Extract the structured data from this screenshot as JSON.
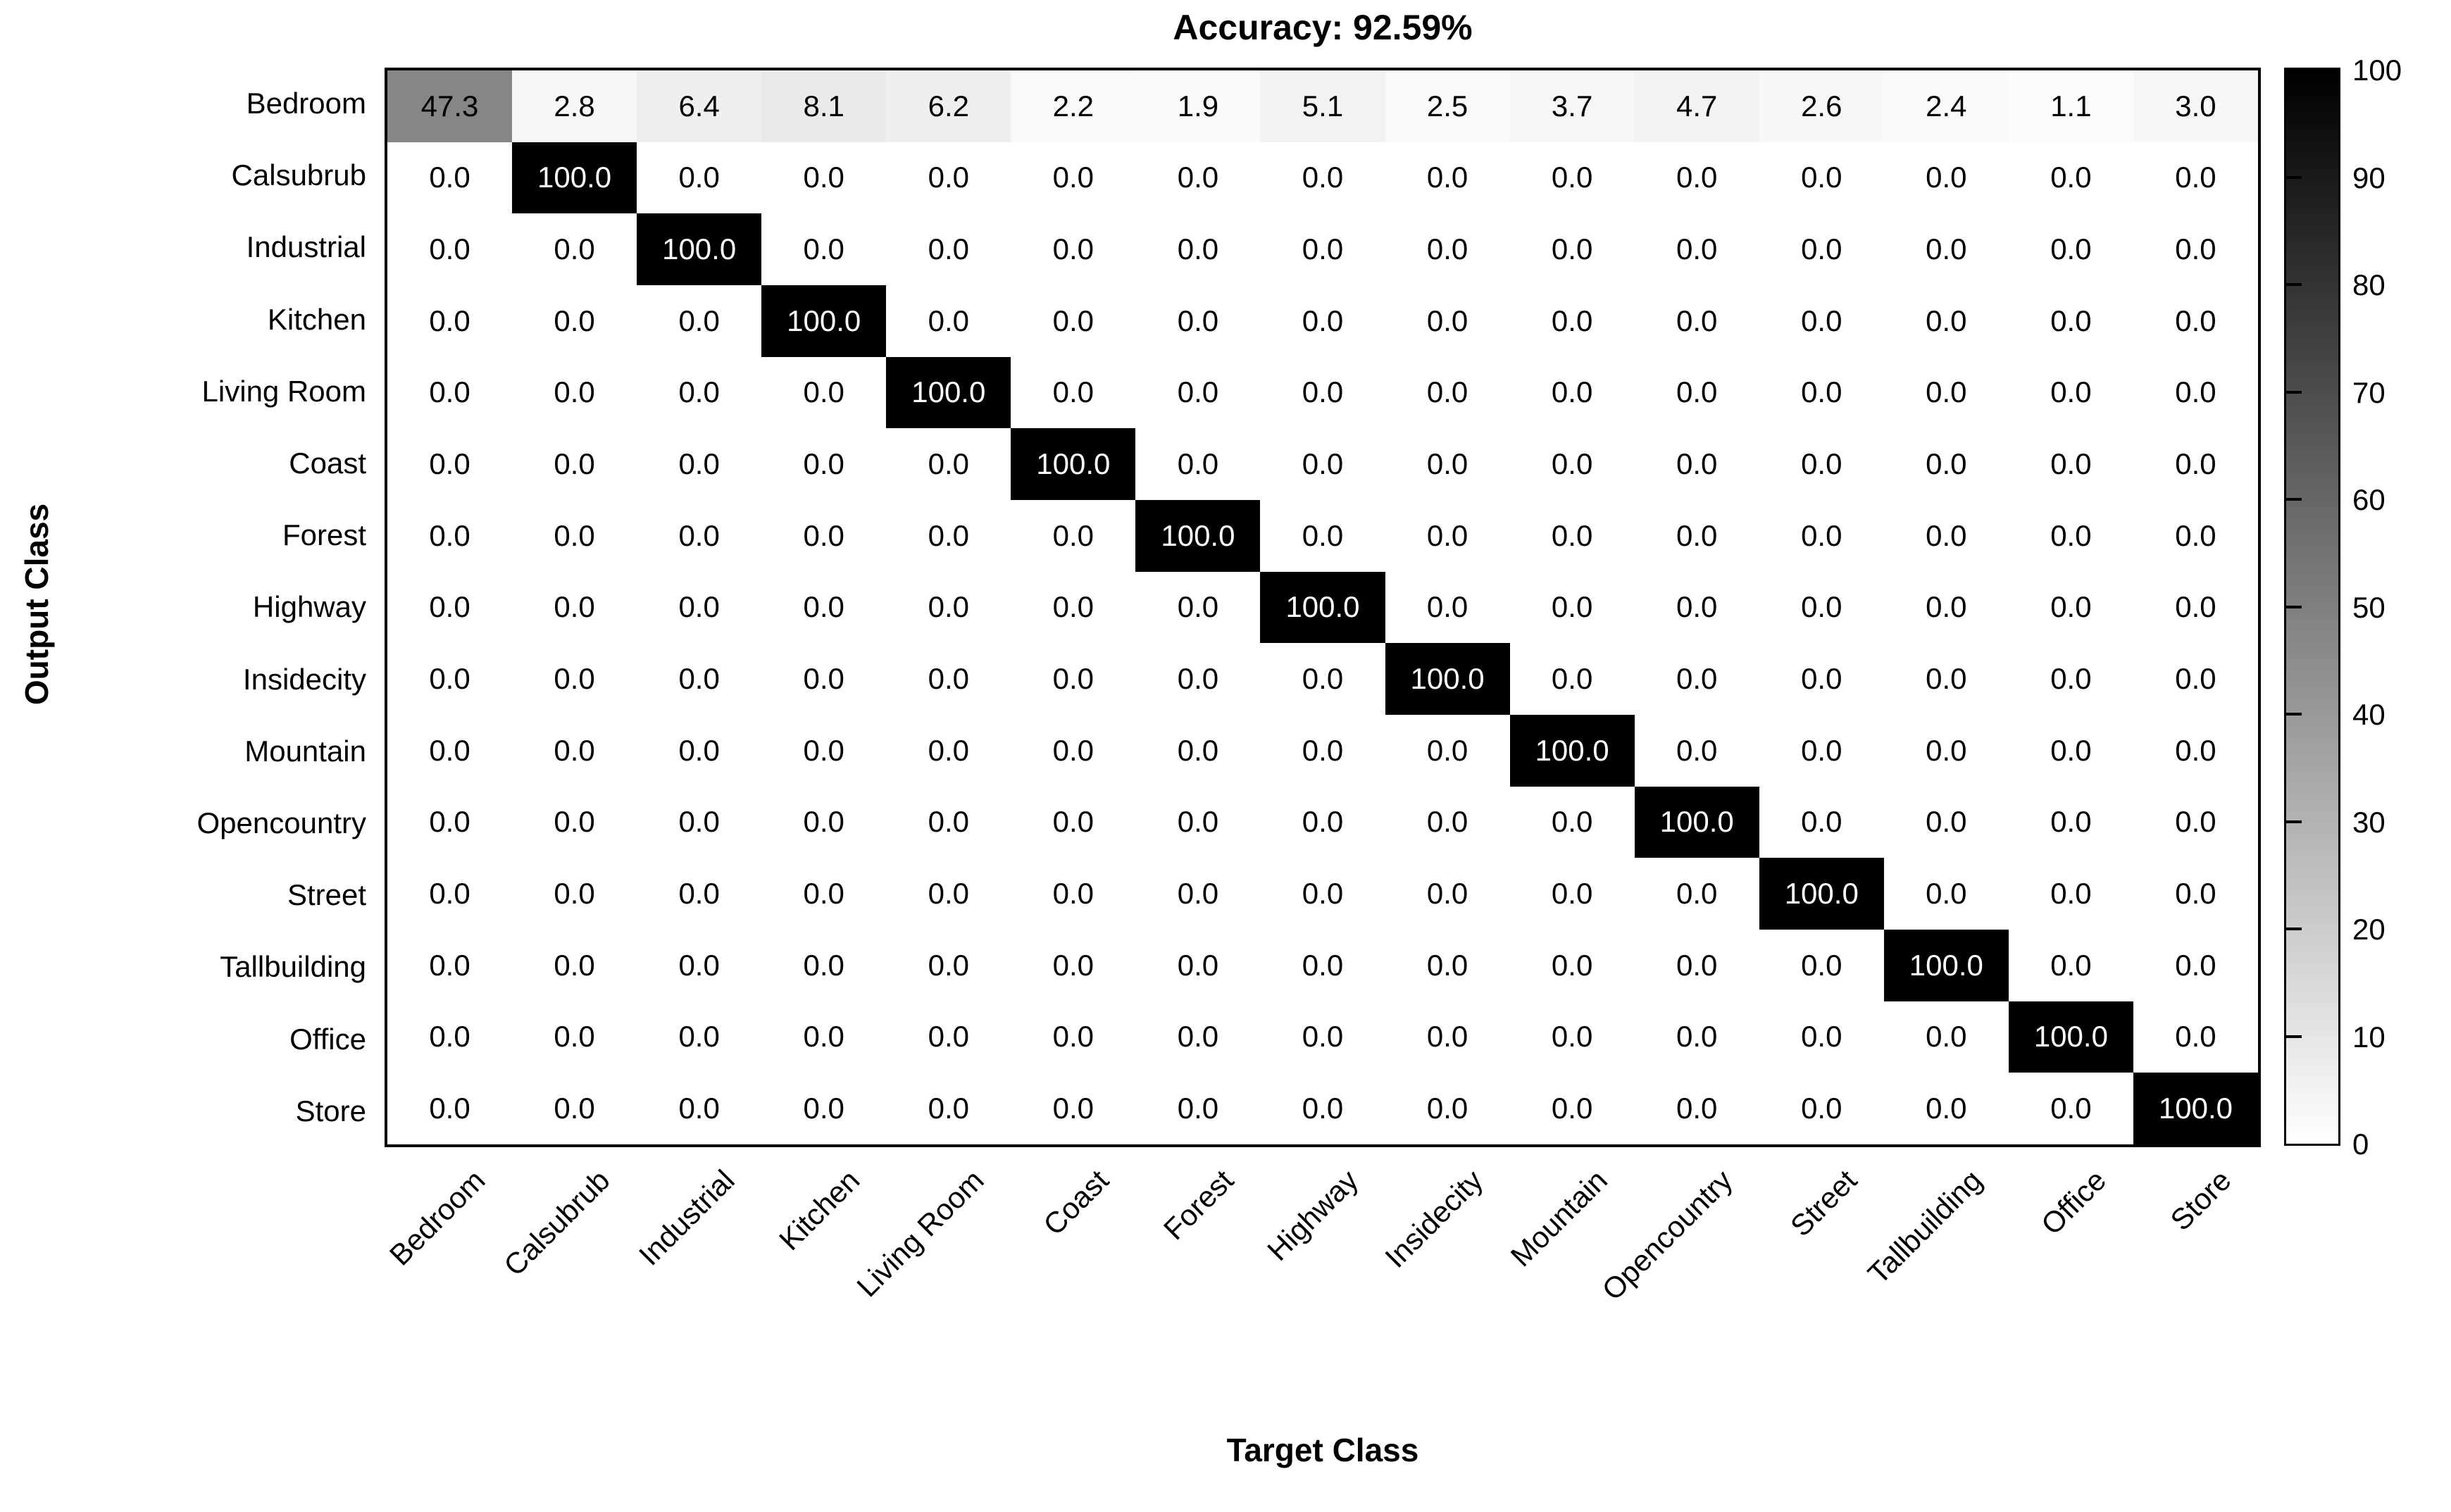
{
  "title": "Accuracy: 92.59%",
  "y_axis_label": "Output Class",
  "x_axis_label": "Target Class",
  "classes": [
    "Bedroom",
    "Calsubrub",
    "Industrial",
    "Kitchen",
    "Living Room",
    "Coast",
    "Forest",
    "Highway",
    "Insidecity",
    "Mountain",
    "Opencountry",
    "Street",
    "Tallbuilding",
    "Office",
    "Store"
  ],
  "colorbar": {
    "min": 0,
    "max": 100,
    "ticks": [
      0,
      10,
      20,
      30,
      40,
      50,
      60,
      70,
      80,
      90,
      100
    ],
    "top_color": "#000000",
    "bottom_color": "#ffffff"
  },
  "chart_data": {
    "type": "heatmap",
    "title": "Accuracy: 92.59%",
    "xlabel": "Target Class",
    "ylabel": "Output Class",
    "categories": [
      "Bedroom",
      "Calsubrub",
      "Industrial",
      "Kitchen",
      "Living Room",
      "Coast",
      "Forest",
      "Highway",
      "Insidecity",
      "Mountain",
      "Opencountry",
      "Street",
      "Tallbuilding",
      "Office",
      "Store"
    ],
    "matrix": [
      [
        47.3,
        2.8,
        6.4,
        8.1,
        6.2,
        2.2,
        1.9,
        5.1,
        2.5,
        3.7,
        4.7,
        2.6,
        2.4,
        1.1,
        3.0
      ],
      [
        0.0,
        100.0,
        0.0,
        0.0,
        0.0,
        0.0,
        0.0,
        0.0,
        0.0,
        0.0,
        0.0,
        0.0,
        0.0,
        0.0,
        0.0
      ],
      [
        0.0,
        0.0,
        100.0,
        0.0,
        0.0,
        0.0,
        0.0,
        0.0,
        0.0,
        0.0,
        0.0,
        0.0,
        0.0,
        0.0,
        0.0
      ],
      [
        0.0,
        0.0,
        0.0,
        100.0,
        0.0,
        0.0,
        0.0,
        0.0,
        0.0,
        0.0,
        0.0,
        0.0,
        0.0,
        0.0,
        0.0
      ],
      [
        0.0,
        0.0,
        0.0,
        0.0,
        100.0,
        0.0,
        0.0,
        0.0,
        0.0,
        0.0,
        0.0,
        0.0,
        0.0,
        0.0,
        0.0
      ],
      [
        0.0,
        0.0,
        0.0,
        0.0,
        0.0,
        100.0,
        0.0,
        0.0,
        0.0,
        0.0,
        0.0,
        0.0,
        0.0,
        0.0,
        0.0
      ],
      [
        0.0,
        0.0,
        0.0,
        0.0,
        0.0,
        0.0,
        100.0,
        0.0,
        0.0,
        0.0,
        0.0,
        0.0,
        0.0,
        0.0,
        0.0
      ],
      [
        0.0,
        0.0,
        0.0,
        0.0,
        0.0,
        0.0,
        0.0,
        100.0,
        0.0,
        0.0,
        0.0,
        0.0,
        0.0,
        0.0,
        0.0
      ],
      [
        0.0,
        0.0,
        0.0,
        0.0,
        0.0,
        0.0,
        0.0,
        0.0,
        100.0,
        0.0,
        0.0,
        0.0,
        0.0,
        0.0,
        0.0
      ],
      [
        0.0,
        0.0,
        0.0,
        0.0,
        0.0,
        0.0,
        0.0,
        0.0,
        0.0,
        100.0,
        0.0,
        0.0,
        0.0,
        0.0,
        0.0
      ],
      [
        0.0,
        0.0,
        0.0,
        0.0,
        0.0,
        0.0,
        0.0,
        0.0,
        0.0,
        0.0,
        100.0,
        0.0,
        0.0,
        0.0,
        0.0
      ],
      [
        0.0,
        0.0,
        0.0,
        0.0,
        0.0,
        0.0,
        0.0,
        0.0,
        0.0,
        0.0,
        0.0,
        100.0,
        0.0,
        0.0,
        0.0
      ],
      [
        0.0,
        0.0,
        0.0,
        0.0,
        0.0,
        0.0,
        0.0,
        0.0,
        0.0,
        0.0,
        0.0,
        0.0,
        100.0,
        0.0,
        0.0
      ],
      [
        0.0,
        0.0,
        0.0,
        0.0,
        0.0,
        0.0,
        0.0,
        0.0,
        0.0,
        0.0,
        0.0,
        0.0,
        0.0,
        100.0,
        0.0
      ],
      [
        0.0,
        0.0,
        0.0,
        0.0,
        0.0,
        0.0,
        0.0,
        0.0,
        0.0,
        0.0,
        0.0,
        0.0,
        0.0,
        0.0,
        100.0
      ]
    ],
    "value_format": "fixed-1-decimal",
    "colormap": "reversed-gray (0 = white, 100 = black)",
    "colorbar_range": [
      0,
      100
    ],
    "colorbar_ticks": [
      0,
      10,
      20,
      30,
      40,
      50,
      60,
      70,
      80,
      90,
      100
    ],
    "legend_position": "right-colorbar",
    "grid": false
  }
}
